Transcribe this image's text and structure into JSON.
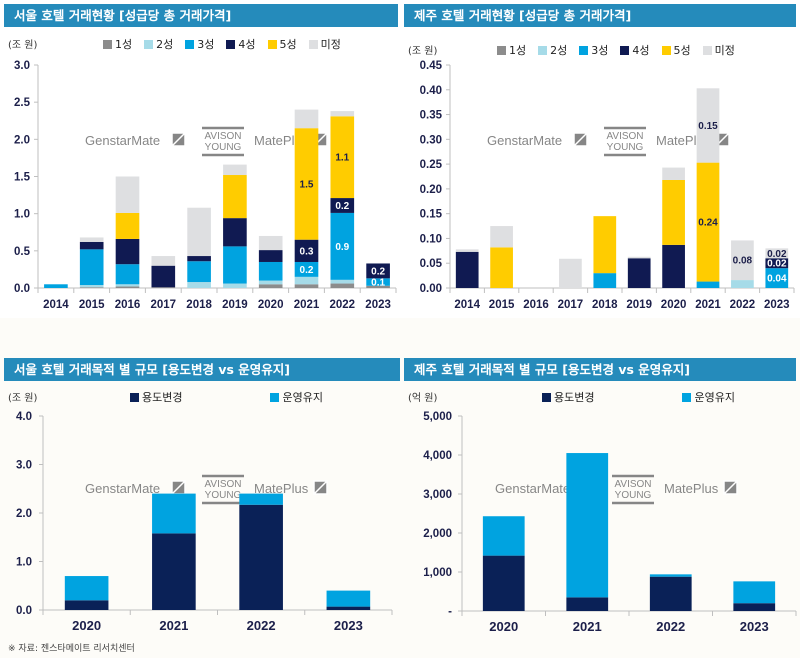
{
  "colors": {
    "title_bar": "#258bbb",
    "star1": "#8c8c8c",
    "star2": "#a6dbe8",
    "star3": "#00a3e0",
    "star4": "#101a52",
    "star5": "#ffcc00",
    "undetermined": "#dedfe1",
    "change_use": "#0a2157",
    "maintain": "#00a3e0"
  },
  "watermark": {
    "brand1": "GenstarMate",
    "brand2_line1": "AVISON",
    "brand2_line2": "YOUNG",
    "brand3": "MatePlus"
  },
  "source_note": "※ 자료: 젠스타메이트 리서치센터",
  "chart_data": [
    {
      "id": "seoul-grade",
      "type": "bar",
      "stacked": true,
      "title": "서울 호텔 거래현황 [성급당 총 거래가격]",
      "unit_label": "(조 원)",
      "xlabel": "",
      "ylabel": "(조 원)",
      "ylim": [
        0,
        3.0
      ],
      "yticks": [
        "0.0",
        "0.5",
        "1.0",
        "1.5",
        "2.0",
        "2.5",
        "3.0"
      ],
      "ytick_values": [
        0,
        0.5,
        1.0,
        1.5,
        2.0,
        2.5,
        3.0
      ],
      "legend_position": "top",
      "grid": false,
      "categories": [
        "2014",
        "2015",
        "2016",
        "2017",
        "2018",
        "2019",
        "2020",
        "2021",
        "2022",
        "2023"
      ],
      "series": [
        {
          "name": "1성",
          "color_key": "star1",
          "values": [
            0,
            0.01,
            0.02,
            0.01,
            0,
            0,
            0.05,
            0.05,
            0.06,
            0.03
          ],
          "labels": [
            null,
            null,
            null,
            null,
            null,
            null,
            null,
            null,
            null,
            null
          ]
        },
        {
          "name": "2성",
          "color_key": "star2",
          "values": [
            0,
            0.03,
            0.03,
            0,
            0.08,
            0.06,
            0.05,
            0.1,
            0.05,
            0
          ],
          "labels": [
            null,
            null,
            null,
            null,
            null,
            null,
            null,
            null,
            null,
            null
          ]
        },
        {
          "name": "3성",
          "color_key": "star3",
          "values": [
            0.05,
            0.48,
            0.27,
            0,
            0.28,
            0.5,
            0.25,
            0.2,
            0.9,
            0.1
          ],
          "labels": [
            null,
            null,
            null,
            null,
            null,
            null,
            null,
            "0.2",
            "0.9",
            "0.1"
          ]
        },
        {
          "name": "4성",
          "color_key": "star4",
          "values": [
            0,
            0.1,
            0.34,
            0.29,
            0.07,
            0.38,
            0.16,
            0.3,
            0.2,
            0.2
          ],
          "labels": [
            null,
            null,
            null,
            null,
            null,
            null,
            null,
            "0.3",
            "0.2",
            "0.2"
          ]
        },
        {
          "name": "5성",
          "color_key": "star5",
          "values": [
            0,
            0,
            0.35,
            0,
            0,
            0.58,
            0,
            1.5,
            1.1,
            0
          ],
          "labels": [
            null,
            null,
            null,
            null,
            null,
            null,
            null,
            "1.5",
            "1.1",
            null
          ]
        },
        {
          "name": "미정",
          "color_key": "undetermined",
          "values": [
            0,
            0.06,
            0.49,
            0.13,
            0.65,
            0.14,
            0.19,
            0.25,
            0.07,
            0
          ],
          "labels": [
            null,
            null,
            null,
            null,
            null,
            null,
            null,
            null,
            null,
            null
          ]
        }
      ]
    },
    {
      "id": "jeju-grade",
      "type": "bar",
      "stacked": true,
      "title": "제주 호텔 거래현황 [성급당 총 거래가격]",
      "unit_label": "(조 원)",
      "xlabel": "",
      "ylabel": "(조 원)",
      "ylim": [
        0,
        0.45
      ],
      "yticks": [
        "0.00",
        "0.05",
        "0.10",
        "0.15",
        "0.20",
        "0.25",
        "0.30",
        "0.35",
        "0.40",
        "0.45"
      ],
      "ytick_values": [
        0,
        0.05,
        0.1,
        0.15,
        0.2,
        0.25,
        0.3,
        0.35,
        0.4,
        0.45
      ],
      "legend_position": "top",
      "grid": false,
      "categories": [
        "2014",
        "2015",
        "2016",
        "2017",
        "2018",
        "2019",
        "2020",
        "2021",
        "2022",
        "2023"
      ],
      "series": [
        {
          "name": "1성",
          "color_key": "star1",
          "values": [
            0,
            0,
            0,
            0,
            0,
            0,
            0,
            0,
            0,
            0
          ],
          "labels": [
            null,
            null,
            null,
            null,
            null,
            null,
            null,
            null,
            null,
            null
          ]
        },
        {
          "name": "2성",
          "color_key": "star2",
          "values": [
            0,
            0,
            0,
            0,
            0,
            0,
            0,
            0,
            0.016,
            0
          ],
          "labels": [
            null,
            null,
            null,
            null,
            null,
            null,
            null,
            null,
            null,
            null
          ]
        },
        {
          "name": "3성",
          "color_key": "star3",
          "values": [
            0,
            0,
            0,
            0,
            0.03,
            0,
            0,
            0.013,
            0,
            0.04
          ],
          "labels": [
            null,
            null,
            null,
            null,
            null,
            null,
            null,
            null,
            null,
            "0.04"
          ]
        },
        {
          "name": "4성",
          "color_key": "star4",
          "values": [
            0.073,
            0,
            0,
            0,
            0,
            0.06,
            0.087,
            0,
            0,
            0.02
          ],
          "labels": [
            null,
            null,
            null,
            null,
            null,
            null,
            null,
            null,
            null,
            "0.02"
          ]
        },
        {
          "name": "5성",
          "color_key": "star5",
          "values": [
            0,
            0.082,
            0,
            0,
            0.115,
            0,
            0.131,
            0.24,
            0,
            0
          ],
          "labels": [
            null,
            null,
            null,
            null,
            null,
            null,
            null,
            "0.24",
            null,
            null
          ]
        },
        {
          "name": "미정",
          "color_key": "undetermined",
          "values": [
            0.005,
            0.043,
            0,
            0.059,
            0,
            0.003,
            0.025,
            0.15,
            0.08,
            0.02
          ],
          "labels": [
            null,
            null,
            null,
            null,
            null,
            null,
            null,
            "0.15",
            "0.08",
            "0.02"
          ]
        }
      ]
    },
    {
      "id": "seoul-purpose",
      "type": "bar",
      "stacked": true,
      "title": "서울 호텔 거래목적 별 규모 [용도변경 vs 운영유지]",
      "unit_label": "(조 원)",
      "xlabel": "",
      "ylabel": "(조 원)",
      "ylim": [
        0,
        4.0
      ],
      "yticks": [
        "0.0",
        "1.0",
        "2.0",
        "3.0",
        "4.0"
      ],
      "ytick_values": [
        0,
        1,
        2,
        3,
        4
      ],
      "legend_position": "top",
      "grid": false,
      "categories": [
        "2020",
        "2021",
        "2022",
        "2023"
      ],
      "series": [
        {
          "name": "용도변경",
          "color_key": "change_use",
          "values": [
            0.2,
            1.58,
            2.17,
            0.07
          ]
        },
        {
          "name": "운영유지",
          "color_key": "maintain",
          "values": [
            0.5,
            0.82,
            0.23,
            0.33
          ]
        }
      ]
    },
    {
      "id": "jeju-purpose",
      "type": "bar",
      "stacked": true,
      "title": "제주 호텔 거래목적 별 규모 [용도변경 vs 운영유지]",
      "unit_label": "(억 원)",
      "xlabel": "",
      "ylabel": "(억 원)",
      "ylim": [
        0,
        5000
      ],
      "yticks": [
        "-",
        "1,000",
        "2,000",
        "3,000",
        "4,000",
        "5,000"
      ],
      "ytick_values": [
        0,
        1000,
        2000,
        3000,
        4000,
        5000
      ],
      "legend_position": "top",
      "grid": false,
      "categories": [
        "2020",
        "2021",
        "2022",
        "2023"
      ],
      "series": [
        {
          "name": "용도변경",
          "color_key": "change_use",
          "values": [
            1420,
            350,
            880,
            200
          ]
        },
        {
          "name": "운영유지",
          "color_key": "maintain",
          "values": [
            1010,
            3700,
            60,
            560
          ]
        }
      ]
    }
  ]
}
